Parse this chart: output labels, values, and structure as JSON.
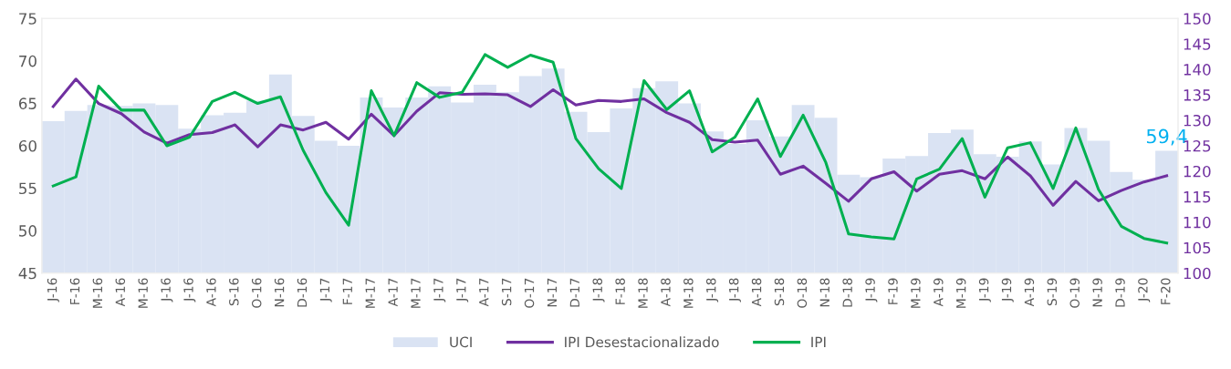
{
  "chart_data": {
    "type": "bar",
    "categories": [
      "J-16",
      "F-16",
      "M-16",
      "A-16",
      "M-16",
      "J-16",
      "J-16",
      "A-16",
      "S-16",
      "O-16",
      "N-16",
      "D-16",
      "J-17",
      "F-17",
      "M-17",
      "A-17",
      "M-17",
      "J-17",
      "J-17",
      "A-17",
      "S-17",
      "O-17",
      "N-17",
      "D-17",
      "J-18",
      "F-18",
      "M-18",
      "A-18",
      "M-18",
      "J-18",
      "J-18",
      "A-18",
      "S-18",
      "O-18",
      "N-18",
      "D-18",
      "J-19",
      "F-19",
      "M-19",
      "A-19",
      "M-19",
      "J-19",
      "J-19",
      "A-19",
      "S-19",
      "O-19",
      "N-19",
      "D-19",
      "J-20",
      "F-20"
    ],
    "series": [
      {
        "name": "UCI",
        "color": "#dae3f3",
        "values": [
          62.9,
          64.1,
          64.8,
          64.7,
          65.0,
          64.8,
          62.0,
          63.6,
          63.9,
          65.3,
          68.4,
          63.5,
          60.6,
          60.0,
          65.7,
          64.5,
          65.7,
          67.0,
          65.1,
          67.2,
          66.3,
          68.2,
          69.1,
          64.0,
          61.6,
          64.4,
          66.8,
          67.6,
          65.0,
          61.7,
          60.2,
          63.0,
          61.1,
          64.8,
          63.3,
          56.6,
          56.3,
          58.5,
          58.8,
          61.5,
          61.9,
          59.0,
          58.7,
          60.5,
          57.8,
          62.1,
          60.6,
          56.9,
          56.0,
          59.4
        ],
        "value_labels": [
          null,
          null,
          null,
          null,
          null,
          null,
          null,
          null,
          null,
          null,
          null,
          null,
          null,
          null,
          null,
          null,
          null,
          null,
          null,
          null,
          null,
          null,
          null,
          null,
          null,
          null,
          null,
          null,
          null,
          null,
          null,
          null,
          null,
          null,
          null,
          null,
          null,
          null,
          null,
          null,
          null,
          null,
          null,
          null,
          null,
          null,
          null,
          null,
          null,
          "59,4"
        ]
      },
      {
        "name": "IPI Desestacionalizado",
        "type": "line",
        "axis": "y2",
        "color": "#7030a0",
        "values": [
          132.7,
          138.1,
          133.3,
          131.3,
          127.7,
          125.5,
          127.2,
          127.6,
          129.1,
          124.8,
          129.1,
          128.1,
          129.6,
          126.3,
          131.2,
          127.0,
          131.8,
          135.4,
          135.1,
          135.2,
          135.0,
          132.7,
          136.0,
          133.0,
          133.9,
          133.7,
          134.2,
          131.5,
          129.6,
          126.2,
          125.7,
          126.1,
          119.4,
          121.0,
          117.6,
          114.1,
          118.5,
          119.9,
          116.1,
          119.4,
          120.1,
          118.5,
          122.8,
          119.1,
          113.3,
          118.0,
          114.2,
          116.2,
          117.9,
          119.1
        ]
      },
      {
        "name": "IPI",
        "type": "line",
        "axis": "y2",
        "color": "#00b050",
        "values": [
          117.1,
          118.9,
          136.7,
          132.0,
          132.0,
          125.0,
          126.7,
          133.7,
          135.5,
          133.3,
          134.6,
          124.1,
          115.8,
          109.4,
          135.8,
          127.0,
          137.4,
          134.5,
          135.5,
          142.9,
          140.4,
          142.8,
          141.4,
          126.4,
          120.5,
          116.6,
          137.8,
          132.1,
          135.8,
          123.8,
          126.7,
          134.2,
          122.9,
          131.0,
          121.7,
          107.7,
          107.1,
          106.7,
          118.5,
          120.4,
          126.4,
          114.9,
          124.6,
          125.6,
          116.6,
          128.5,
          116.4,
          109.2,
          106.8,
          105.9
        ]
      }
    ],
    "ylim": [
      45,
      75
    ],
    "yticks": [
      45,
      50,
      55,
      60,
      65,
      70,
      75
    ],
    "y2lim": [
      100,
      150
    ],
    "y2ticks": [
      100,
      105,
      110,
      115,
      120,
      125,
      130,
      135,
      140,
      145,
      150
    ],
    "grid": false,
    "legend": "bottom",
    "marker": "none",
    "line_style": "solid"
  }
}
